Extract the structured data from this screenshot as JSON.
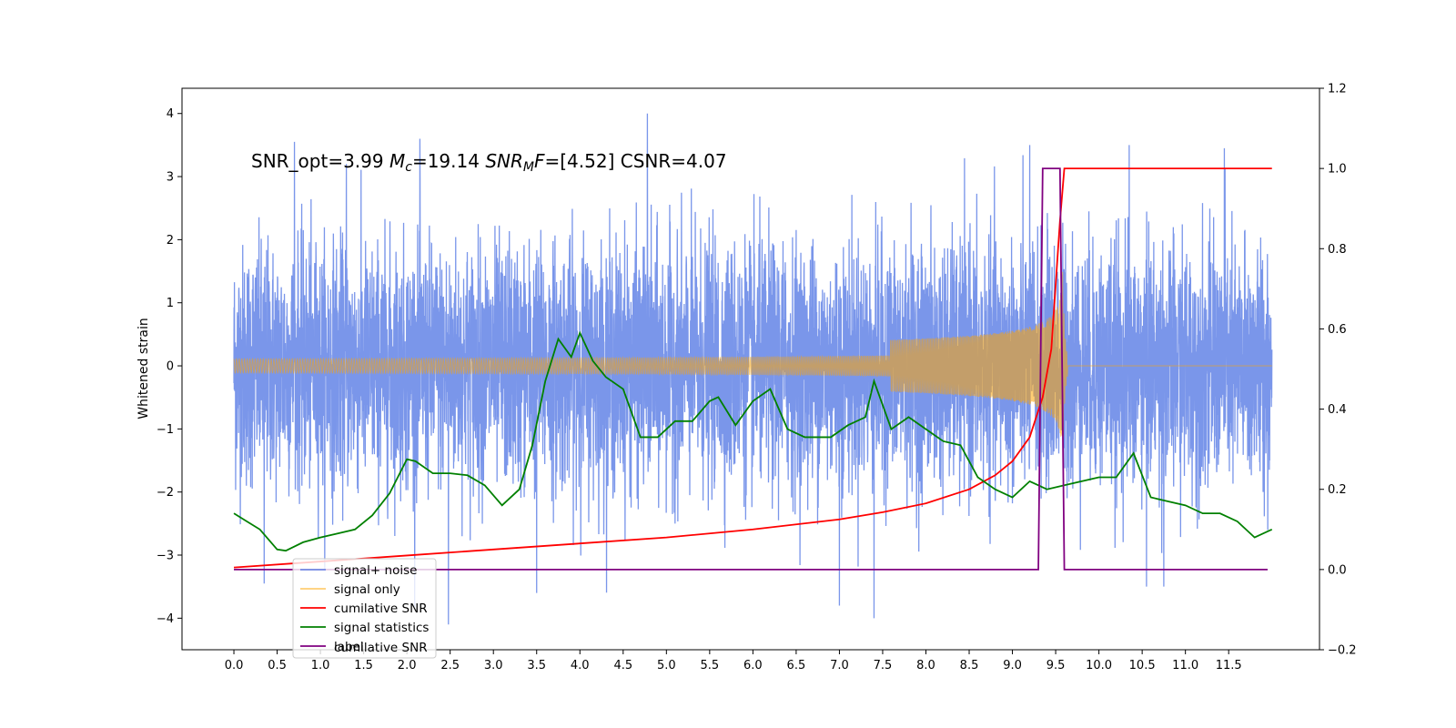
{
  "chart_data": {
    "type": "line",
    "title": "",
    "annotation": {
      "parts": [
        {
          "text": "SNR_opt=3.99   ",
          "italic": false
        },
        {
          "text": "M",
          "italic": true
        },
        {
          "text": "c",
          "italic": true,
          "sub": true
        },
        {
          "text": "=19.14  ",
          "italic": false
        },
        {
          "text": "SNR",
          "italic": true
        },
        {
          "text": "M",
          "italic": true,
          "sub": true
        },
        {
          "text": "F",
          "italic": true
        },
        {
          "text": "=[4.52]   CSNR=4.07",
          "italic": false
        }
      ]
    },
    "xlabel": "",
    "ylabel": "Whitened strain",
    "ylabel_right": "",
    "xlim": [
      -0.6,
      12.55
    ],
    "ylim": [
      -4.5,
      4.4
    ],
    "ylim_right": [
      -0.2,
      1.2
    ],
    "x_ticks": [
      "0.0",
      "0.5",
      "1.0",
      "1.5",
      "2.0",
      "2.5",
      "3.0",
      "3.5",
      "4.0",
      "4.5",
      "5.0",
      "5.5",
      "6.0",
      "6.5",
      "7.0",
      "7.5",
      "8.0",
      "8.5",
      "9.0",
      "9.5",
      "10.0",
      "10.5",
      "11.0",
      "11.5"
    ],
    "y_ticks": [
      "4",
      "3",
      "2",
      "1",
      "0",
      "−1",
      "−2",
      "−3",
      "−4"
    ],
    "y_ticks_right": [
      "1.2",
      "1.0",
      "0.8",
      "0.6",
      "0.4",
      "0.2",
      "0.0",
      "−0.2"
    ],
    "grid": false,
    "legend_position": "bottom-left",
    "series": [
      {
        "name": "signal+ noise",
        "axis": "left",
        "color": "#4169e1",
        "style": "dense-noise",
        "x_range": [
          0.0,
          12.0
        ],
        "typical_range": [
          -1.6,
          1.6
        ],
        "max_range": [
          -4.1,
          4.0
        ],
        "spikes": [
          {
            "x": 0.35,
            "y": 3.65
          },
          {
            "x": 0.7,
            "y": 3.55
          },
          {
            "x": 1.3,
            "y": 3.2
          },
          {
            "x": 2.15,
            "y": 3.6
          },
          {
            "x": 3.5,
            "y": 3.75
          },
          {
            "x": 4.78,
            "y": 4.0
          },
          {
            "x": 9.2,
            "y": 3.5
          },
          {
            "x": 10.35,
            "y": 3.5
          },
          {
            "x": 11.45,
            "y": 3.45
          },
          {
            "x": 2.48,
            "y": -4.1
          },
          {
            "x": 3.5,
            "y": -3.6
          },
          {
            "x": 7.0,
            "y": -3.8
          },
          {
            "x": 7.4,
            "y": -4.0
          },
          {
            "x": 0.35,
            "y": -3.45
          },
          {
            "x": 10.55,
            "y": -3.5
          },
          {
            "x": 10.75,
            "y": -3.5
          }
        ]
      },
      {
        "name": "signal only",
        "axis": "left",
        "color": "#ffa500",
        "style": "chirp",
        "x_range": [
          0.0,
          12.0
        ],
        "peak_x": 9.58,
        "peak_amplitude": 1.55
      },
      {
        "name": "cumilative SNR",
        "axis": "right",
        "color": "#ff0000",
        "x": [
          0.0,
          1.0,
          2.0,
          3.0,
          4.0,
          5.0,
          6.0,
          7.0,
          7.5,
          8.0,
          8.5,
          8.8,
          9.0,
          9.2,
          9.35,
          9.45,
          9.55,
          9.6,
          12.0
        ],
        "values": [
          0.005,
          0.02,
          0.035,
          0.05,
          0.065,
          0.08,
          0.1,
          0.125,
          0.143,
          0.165,
          0.2,
          0.235,
          0.27,
          0.33,
          0.43,
          0.55,
          0.87,
          1.0,
          1.0
        ]
      },
      {
        "name": "signal statistics",
        "axis": "right",
        "color": "#008000",
        "x": [
          0.0,
          0.15,
          0.3,
          0.5,
          0.6,
          0.8,
          1.0,
          1.2,
          1.4,
          1.6,
          1.8,
          2.0,
          2.1,
          2.3,
          2.5,
          2.7,
          2.9,
          3.1,
          3.3,
          3.45,
          3.6,
          3.75,
          3.9,
          4.0,
          4.15,
          4.3,
          4.5,
          4.7,
          4.9,
          5.1,
          5.3,
          5.5,
          5.6,
          5.8,
          6.0,
          6.2,
          6.4,
          6.6,
          6.9,
          7.1,
          7.3,
          7.4,
          7.6,
          7.8,
          8.0,
          8.2,
          8.4,
          8.6,
          8.8,
          9.0,
          9.2,
          9.4,
          9.6,
          9.8,
          10.0,
          10.2,
          10.4,
          10.6,
          10.8,
          11.0,
          11.2,
          11.4,
          11.6,
          11.8,
          12.0
        ],
        "values": [
          0.14,
          0.12,
          0.1,
          0.05,
          0.047,
          0.068,
          0.08,
          0.09,
          0.1,
          0.135,
          0.19,
          0.275,
          0.27,
          0.24,
          0.24,
          0.235,
          0.21,
          0.16,
          0.2,
          0.31,
          0.47,
          0.575,
          0.53,
          0.59,
          0.52,
          0.48,
          0.45,
          0.33,
          0.33,
          0.37,
          0.37,
          0.42,
          0.43,
          0.36,
          0.42,
          0.45,
          0.35,
          0.33,
          0.33,
          0.36,
          0.38,
          0.47,
          0.35,
          0.38,
          0.35,
          0.32,
          0.31,
          0.23,
          0.2,
          0.18,
          0.22,
          0.2,
          0.21,
          0.22,
          0.23,
          0.23,
          0.29,
          0.18,
          0.17,
          0.16,
          0.14,
          0.14,
          0.12,
          0.08,
          0.1
        ]
      },
      {
        "name": "label",
        "axis": "right",
        "color": "#800080",
        "x": [
          0.0,
          9.3,
          9.35,
          9.55,
          9.6,
          11.95
        ],
        "values": [
          0.0,
          0.0,
          1.0,
          1.0,
          0.0,
          0.0
        ]
      }
    ],
    "legend_ghost_text": "cumilative SNR"
  }
}
